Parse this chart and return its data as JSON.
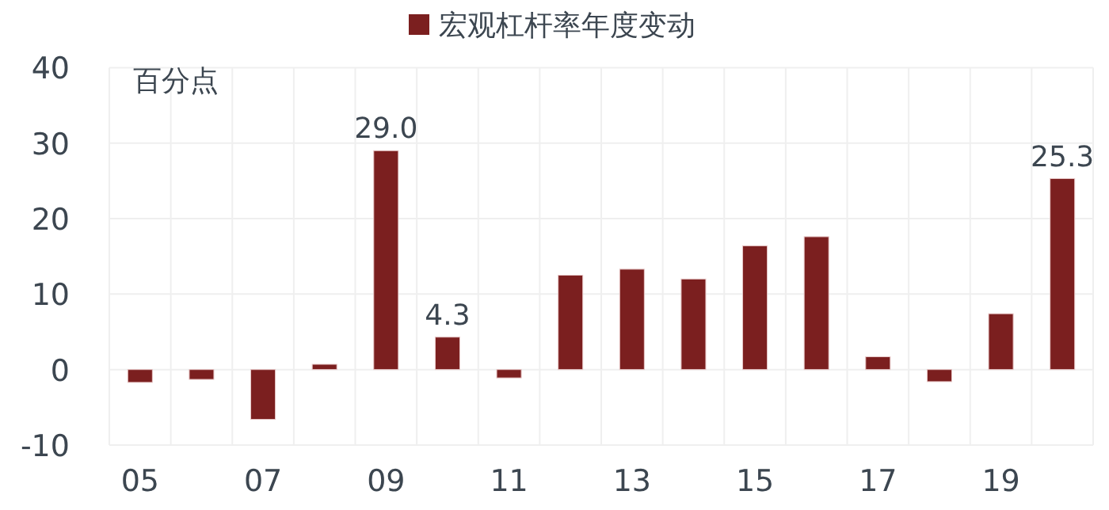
{
  "chart_data": {
    "type": "bar",
    "categories": [
      "05",
      null,
      "07",
      null,
      "09",
      null,
      "11",
      null,
      "13",
      null,
      "15",
      null,
      "17",
      null,
      "19",
      null
    ],
    "series": [
      {
        "name": "宏观杠杆率年度变动",
        "color": "#7b1f1f",
        "values": [
          -1.7,
          -1.3,
          -6.6,
          0.7,
          29.0,
          4.3,
          -1.1,
          12.5,
          13.3,
          12.0,
          16.4,
          17.6,
          1.7,
          -1.6,
          7.4,
          25.3
        ],
        "value_labels": [
          null,
          null,
          null,
          null,
          "29.0",
          "4.3",
          null,
          null,
          null,
          null,
          null,
          null,
          null,
          null,
          null,
          "25.3"
        ]
      }
    ],
    "annotations": [
      "百分点"
    ],
    "ylim": [
      -10,
      40
    ],
    "yticks": [
      -10,
      0,
      10,
      20,
      30,
      40
    ],
    "grid": true,
    "legend": "top"
  }
}
